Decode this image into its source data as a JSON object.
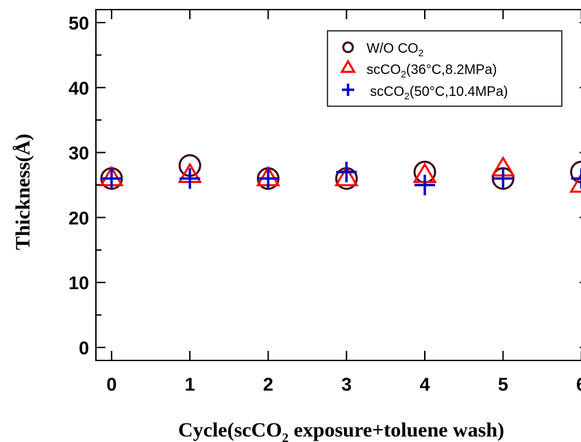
{
  "chart_data": {
    "type": "scatter",
    "xlabel": {
      "pre": "Cycle(scCO",
      "sub": "2",
      "post": " exposure+toluene wash)"
    },
    "ylabel": "Thickness(Å)",
    "xlim": [
      -0.2,
      6.1
    ],
    "ylim": [
      -2,
      52
    ],
    "xticks": [
      "0",
      "1",
      "2",
      "3",
      "4",
      "5",
      "6"
    ],
    "yticks": [
      "0",
      "10",
      "20",
      "30",
      "40",
      "50"
    ],
    "legend_position": "top-right",
    "series": [
      {
        "name": {
          "pre": "W/O CO",
          "sub": "2",
          "post": ""
        },
        "marker": "circle",
        "color": "#3a0a14",
        "x": [
          0,
          1,
          2,
          3,
          4,
          5,
          6
        ],
        "y": [
          26,
          28,
          26,
          26,
          27,
          26,
          27
        ]
      },
      {
        "name": {
          "pre": "scCO",
          "sub": "2",
          "post": "(36°C,8.2MPa)"
        },
        "marker": "triangle",
        "color": "#ff0000",
        "x": [
          0,
          1,
          2,
          3,
          4,
          5,
          6
        ],
        "y": [
          26,
          26.5,
          26,
          26,
          26.5,
          27.5,
          25
        ]
      },
      {
        "name": {
          "pre": " scCO",
          "sub": "2",
          "post": "(50°C,10.4MPa)"
        },
        "marker": "plus",
        "color": "#0000cc",
        "x": [
          0,
          1,
          2,
          3,
          4,
          5,
          6
        ],
        "y": [
          26,
          26,
          26,
          27,
          25,
          26,
          26
        ]
      }
    ]
  }
}
